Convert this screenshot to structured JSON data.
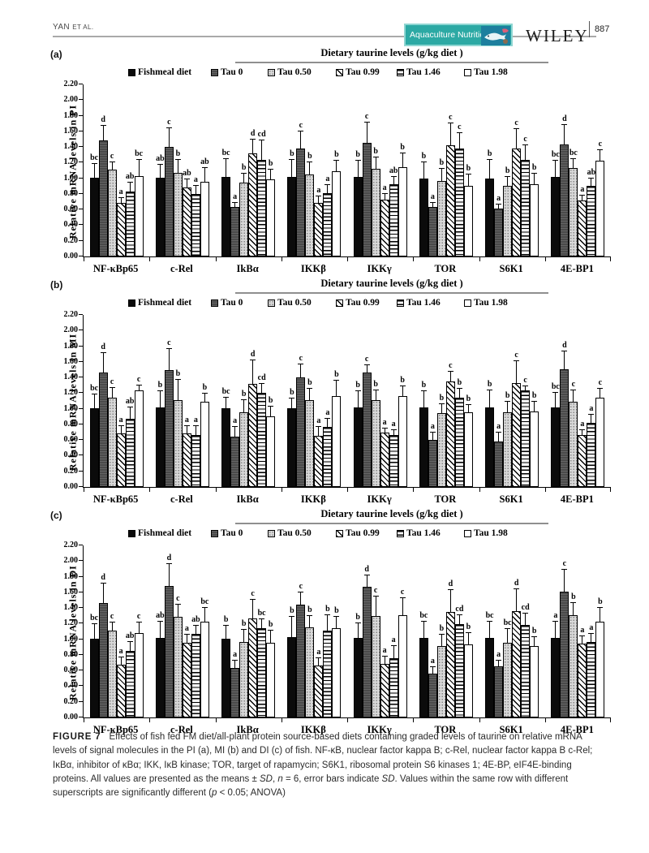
{
  "page_header": {
    "authors": "YAN",
    "authors_suffix": "ET AL.",
    "journal_badge": "Aquaculture Nutrition",
    "publisher": "WILEY",
    "page_number": "887"
  },
  "figure_caption": {
    "label": "FIGURE 7",
    "segments": [
      {
        "text": "Effects of fish fed FM diet/all-plant protein source-based diets containing graded levels of taurine on relative mRNA levels of signal molecules in the PI (a), MI (b) and DI (c) of fish. NF-κB, nuclear factor kappa B; c-Rel, nuclear factor kappa B c-Rel; IκBα, inhibitor of κBα; IKK, IκB kinase; TOR, target of rapamycin; S6K1, ribosomal protein S6 kinases 1; 4E-BP, eIF4E-binding proteins. All values are presented as the means ± ",
        "italic": false
      },
      {
        "text": "SD",
        "italic": true
      },
      {
        "text": ", ",
        "italic": false
      },
      {
        "text": "n",
        "italic": true
      },
      {
        "text": " = 6, error bars indicate ",
        "italic": false
      },
      {
        "text": "SD",
        "italic": true
      },
      {
        "text": ". Values within the same row with different superscripts are significantly different (",
        "italic": false
      },
      {
        "text": "p",
        "italic": true
      },
      {
        "text": " < 0.05; ANOVA)",
        "italic": false
      }
    ]
  },
  "chart_data": [
    {
      "type": "bar",
      "panel": "(a)",
      "title": "Dietary taurine levels (g/kg diet )",
      "ylabel": "Relative mRNA levels in PI",
      "ylim": [
        0,
        2.2
      ],
      "ytick_step": 0.2,
      "grid": false,
      "legend_position": "top",
      "categories": [
        "NF-κBp65",
        "c-Rel",
        "IkBα",
        "IKKβ",
        "IKKγ",
        "TOR",
        "S6K1",
        "4E-BP1"
      ],
      "series": [
        {
          "name": "Fishmeal diet",
          "pattern": "solid-black",
          "values": [
            1.01,
            1.01,
            1.02,
            1.02,
            1.02,
            1.0,
            1.0,
            1.02
          ],
          "errors": [
            0.17,
            0.16,
            0.23,
            0.22,
            0.2,
            0.2,
            0.23,
            0.2
          ],
          "letters": [
            "bc",
            "ab",
            "bc",
            "b",
            "b",
            "b",
            "b",
            "bc"
          ]
        },
        {
          "name": "Tau 0",
          "pattern": "dark-gray",
          "values": [
            1.48,
            1.4,
            0.63,
            1.38,
            1.45,
            0.63,
            0.61,
            1.43
          ],
          "errors": [
            0.19,
            0.24,
            0.06,
            0.22,
            0.26,
            0.05,
            0.05,
            0.25
          ],
          "letters": [
            "d",
            "c",
            "a",
            "c",
            "c",
            "a",
            "a",
            "d"
          ]
        },
        {
          "name": "Tau 0.50",
          "pattern": "light-dotted",
          "values": [
            1.11,
            1.07,
            0.94,
            1.05,
            1.12,
            0.97,
            0.9,
            1.13
          ],
          "errors": [
            0.09,
            0.17,
            0.12,
            0.15,
            0.15,
            0.15,
            0.12,
            0.12
          ],
          "letters": [
            "c",
            "b",
            "b",
            "b",
            "b",
            "b",
            "b",
            "bc"
          ]
        },
        {
          "name": "Tau 0.99",
          "pattern": "diagonal-hatch",
          "values": [
            0.68,
            0.88,
            1.32,
            0.69,
            0.73,
            1.42,
            1.38,
            0.72
          ],
          "errors": [
            0.07,
            0.11,
            0.17,
            0.08,
            0.07,
            0.28,
            0.25,
            0.06
          ],
          "letters": [
            "a",
            "ab",
            "d",
            "a",
            "a",
            "c",
            "c",
            "a"
          ]
        },
        {
          "name": "Tau 1.46",
          "pattern": "horizontal-lines",
          "values": [
            0.83,
            0.8,
            1.23,
            0.81,
            0.92,
            1.38,
            1.24,
            0.9
          ],
          "errors": [
            0.11,
            0.1,
            0.25,
            0.1,
            0.1,
            0.2,
            0.18,
            0.1
          ],
          "letters": [
            "ab",
            "a",
            "cd",
            "a",
            "ab",
            "c",
            "c",
            "ab"
          ]
        },
        {
          "name": "Tau 1.98",
          "pattern": "white-open",
          "values": [
            1.03,
            0.96,
            0.99,
            1.09,
            1.14,
            0.9,
            0.92,
            1.22
          ],
          "errors": [
            0.2,
            0.17,
            0.12,
            0.13,
            0.18,
            0.15,
            0.14,
            0.14
          ],
          "letters": [
            "bc",
            "ab",
            "b",
            "b",
            "b",
            "b",
            "b",
            "c"
          ]
        }
      ]
    },
    {
      "type": "bar",
      "panel": "(b)",
      "title": "Dietary taurine levels (g/kg diet )",
      "ylabel": "Relative mRNA levels in MI",
      "ylim": [
        0,
        2.2
      ],
      "ytick_step": 0.2,
      "grid": false,
      "legend_position": "top",
      "categories": [
        "NF-κBp65",
        "c-Rel",
        "IkBα",
        "IKKβ",
        "IKKγ",
        "TOR",
        "S6K1",
        "4E-BP1"
      ],
      "series": [
        {
          "name": "Fishmeal diet",
          "pattern": "solid-black",
          "values": [
            1.01,
            1.02,
            1.01,
            1.01,
            1.02,
            1.02,
            1.02,
            1.02
          ],
          "errors": [
            0.17,
            0.2,
            0.13,
            0.12,
            0.2,
            0.2,
            0.22,
            0.18
          ],
          "letters": [
            "bc",
            "b",
            "bc",
            "b",
            "b",
            "b",
            "b",
            "bc"
          ]
        },
        {
          "name": "Tau 0",
          "pattern": "dark-gray",
          "values": [
            1.46,
            1.49,
            0.64,
            1.4,
            1.46,
            0.6,
            0.58,
            1.51
          ],
          "errors": [
            0.25,
            0.27,
            0.13,
            0.17,
            0.1,
            0.1,
            0.12,
            0.22
          ],
          "letters": [
            "d",
            "c",
            "a",
            "c",
            "c",
            "a",
            "a",
            "d"
          ]
        },
        {
          "name": "Tau 0.50",
          "pattern": "light-dotted",
          "values": [
            1.14,
            1.11,
            0.96,
            1.11,
            1.11,
            0.94,
            0.96,
            1.09
          ],
          "errors": [
            0.13,
            0.26,
            0.15,
            0.15,
            0.12,
            0.12,
            0.13,
            0.15
          ],
          "letters": [
            "c",
            "b",
            "b",
            "b",
            "b",
            "b",
            "b",
            "c"
          ]
        },
        {
          "name": "Tau 0.99",
          "pattern": "diagonal-hatch",
          "values": [
            0.69,
            0.69,
            1.32,
            0.65,
            0.7,
            1.35,
            1.33,
            0.66
          ],
          "errors": [
            0.09,
            0.09,
            0.3,
            0.12,
            0.05,
            0.12,
            0.28,
            0.07
          ],
          "letters": [
            "a",
            "a",
            "d",
            "a",
            "a",
            "c",
            "c",
            "a"
          ]
        },
        {
          "name": "Tau 1.46",
          "pattern": "horizontal-lines",
          "values": [
            0.87,
            0.66,
            1.2,
            0.77,
            0.66,
            1.14,
            1.24,
            0.82
          ],
          "errors": [
            0.15,
            0.12,
            0.12,
            0.1,
            0.07,
            0.12,
            0.05,
            0.1
          ],
          "letters": [
            "ab",
            "a",
            "cd",
            "a",
            "a",
            "b",
            "c",
            "a"
          ]
        },
        {
          "name": "Tau 1.98",
          "pattern": "white-open",
          "values": [
            1.23,
            1.09,
            0.9,
            1.16,
            1.16,
            0.95,
            0.97,
            1.14
          ],
          "errors": [
            0.07,
            0.1,
            0.13,
            0.2,
            0.13,
            0.1,
            0.12,
            0.12
          ],
          "letters": [
            "c",
            "b",
            "b",
            "b",
            "b",
            "b",
            "b",
            "c"
          ]
        }
      ]
    },
    {
      "type": "bar",
      "panel": "(c)",
      "title": "Dietary taurine levels (g/kg diet )",
      "ylabel": "Relative mRNA levels in DI",
      "ylim": [
        0,
        2.2
      ],
      "ytick_step": 0.2,
      "grid": false,
      "legend_position": "top",
      "categories": [
        "NF-κBp65",
        "c-Rel",
        "IkBα",
        "IKKβ",
        "IKKγ",
        "TOR",
        "S6K1",
        "4E-BP1"
      ],
      "series": [
        {
          "name": "Fishmeal diet",
          "pattern": "solid-black",
          "values": [
            1.01,
            1.02,
            1.01,
            1.03,
            1.02,
            1.02,
            1.02,
            1.02
          ],
          "errors": [
            0.18,
            0.2,
            0.16,
            0.26,
            0.18,
            0.2,
            0.2,
            0.2
          ],
          "letters": [
            "bc",
            "ab",
            "b",
            "b",
            "b",
            "bc",
            "bc",
            "a"
          ]
        },
        {
          "name": "Tau 0",
          "pattern": "dark-gray",
          "values": [
            1.46,
            1.68,
            0.63,
            1.44,
            1.67,
            0.56,
            0.65,
            1.61
          ],
          "errors": [
            0.25,
            0.28,
            0.1,
            0.16,
            0.15,
            0.08,
            0.08,
            0.28
          ],
          "letters": [
            "d",
            "d",
            "a",
            "c",
            "d",
            "a",
            "a",
            "c"
          ]
        },
        {
          "name": "Tau 0.50",
          "pattern": "light-dotted",
          "values": [
            1.11,
            1.29,
            0.97,
            1.15,
            1.3,
            0.91,
            0.95,
            1.31
          ],
          "errors": [
            0.1,
            0.15,
            0.15,
            0.15,
            0.25,
            0.15,
            0.18,
            0.15
          ],
          "letters": [
            "c",
            "c",
            "b",
            "b",
            "c",
            "b",
            "bc",
            "b"
          ]
        },
        {
          "name": "Tau 0.99",
          "pattern": "diagonal-hatch",
          "values": [
            0.67,
            0.96,
            1.27,
            0.66,
            0.68,
            1.35,
            1.36,
            0.94
          ],
          "errors": [
            0.1,
            0.1,
            0.24,
            0.1,
            0.1,
            0.28,
            0.28,
            0.1
          ],
          "letters": [
            "a",
            "a",
            "c",
            "a",
            "a",
            "d",
            "d",
            "a"
          ]
        },
        {
          "name": "Tau 1.46",
          "pattern": "horizontal-lines",
          "values": [
            0.85,
            1.07,
            1.14,
            1.11,
            0.76,
            1.19,
            1.18,
            0.97
          ],
          "errors": [
            0.12,
            0.1,
            0.12,
            0.2,
            0.15,
            0.12,
            0.15,
            0.1
          ],
          "letters": [
            "ab",
            "ab",
            "bc",
            "b",
            "a",
            "cd",
            "cd",
            "a"
          ]
        },
        {
          "name": "Tau 1.98",
          "pattern": "white-open",
          "values": [
            1.08,
            1.22,
            0.96,
            1.14,
            1.31,
            0.93,
            0.91,
            1.22
          ],
          "errors": [
            0.13,
            0.18,
            0.15,
            0.15,
            0.22,
            0.15,
            0.12,
            0.18
          ],
          "letters": [
            "c",
            "bc",
            "b",
            "b",
            "c",
            "b",
            "b",
            "b"
          ]
        }
      ]
    }
  ]
}
